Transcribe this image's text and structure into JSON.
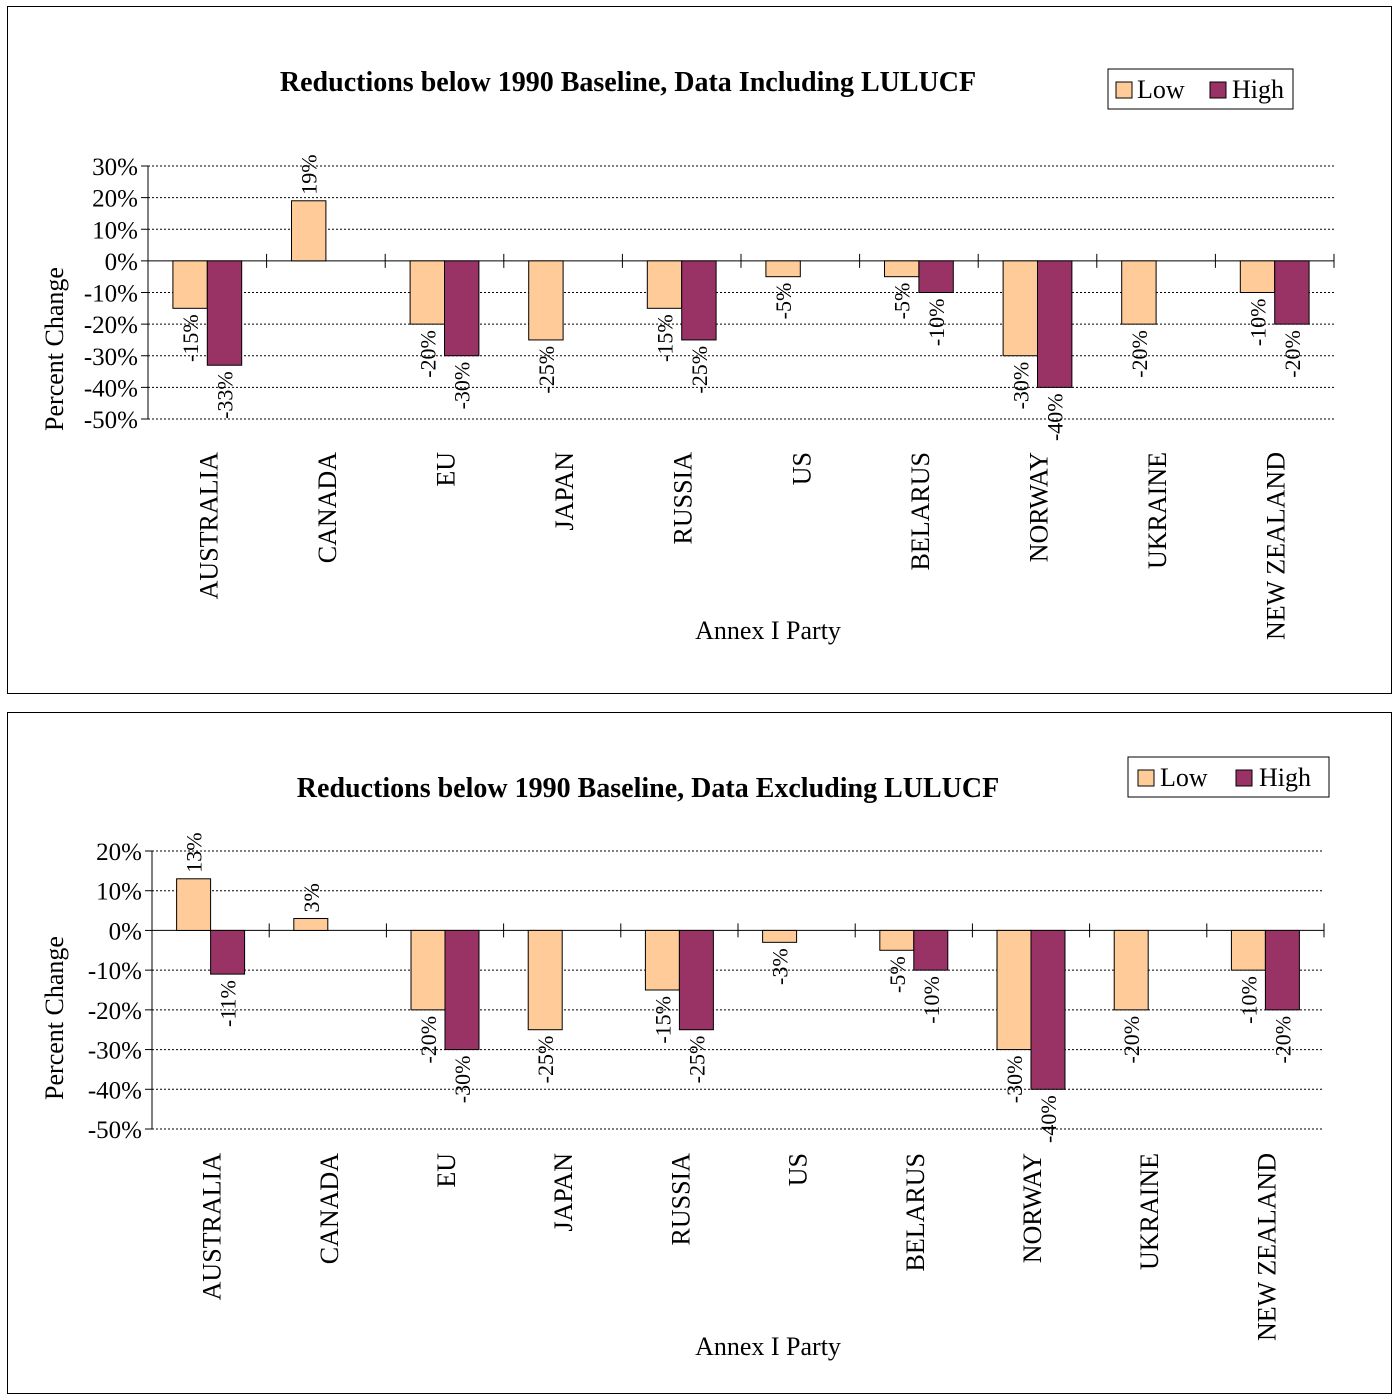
{
  "chart_data": [
    {
      "type": "bar",
      "title": "Reductions below 1990 Baseline, Data Including LULUCF",
      "xlabel": "Annex I Party",
      "ylabel": "Percent Change",
      "categories": [
        "AUSTRALIA",
        "CANADA",
        "EU",
        "JAPAN",
        "RUSSIA",
        "US",
        "BELARUS",
        "NORWAY",
        "UKRAINE",
        "NEW ZEALAND"
      ],
      "series": [
        {
          "name": "Low",
          "values": [
            -15,
            19,
            -20,
            -25,
            -15,
            -5,
            -5,
            -30,
            -20,
            -10
          ],
          "labels": [
            "-15%",
            "19%",
            "-20%",
            "-25%",
            "-15%",
            "-5%",
            "-5%",
            "-30%",
            "-20%",
            "-10%"
          ]
        },
        {
          "name": "High",
          "values": [
            -33,
            null,
            -30,
            null,
            -25,
            null,
            -10,
            -40,
            null,
            -20
          ],
          "labels": [
            "-33%",
            null,
            "-30%",
            null,
            "-25%",
            null,
            "-10%",
            "-40%",
            null,
            "-20%"
          ]
        }
      ],
      "yticks": [
        "30%",
        "20%",
        "10%",
        "0%",
        "-10%",
        "-20%",
        "-30%",
        "-40%",
        "-50%"
      ],
      "ylim": [
        -50,
        30
      ],
      "grid": true,
      "legend": "top-right",
      "colors": {
        "Low": "#FFCC99",
        "High": "#993366"
      }
    },
    {
      "type": "bar",
      "title": "Reductions below 1990 Baseline, Data Excluding LULUCF",
      "xlabel": "Annex I Party",
      "ylabel": "Percent Change",
      "categories": [
        "AUSTRALIA",
        "CANADA",
        "EU",
        "JAPAN",
        "RUSSIA",
        "US",
        "BELARUS",
        "NORWAY",
        "UKRAINE",
        "NEW ZEALAND"
      ],
      "series": [
        {
          "name": "Low",
          "values": [
            13,
            3,
            -20,
            -25,
            -15,
            -3,
            -5,
            -30,
            -20,
            -10
          ],
          "labels": [
            "13%",
            "3%",
            "-20%",
            "-25%",
            "-15%",
            "-3%",
            "-5%",
            "-30%",
            "-20%",
            "-10%"
          ]
        },
        {
          "name": "High",
          "values": [
            -11,
            null,
            -30,
            null,
            -25,
            null,
            -10,
            -40,
            null,
            -20
          ],
          "labels": [
            "-11%",
            null,
            "-30%",
            null,
            "-25%",
            null,
            "-10%",
            "-40%",
            null,
            "-20%"
          ]
        }
      ],
      "yticks": [
        "20%",
        "10%",
        "0%",
        "-10%",
        "-20%",
        "-30%",
        "-40%",
        "-50%"
      ],
      "ylim": [
        -50,
        20
      ],
      "grid": true,
      "legend": "top-right",
      "colors": {
        "Low": "#FFCC99",
        "High": "#993366"
      }
    }
  ]
}
